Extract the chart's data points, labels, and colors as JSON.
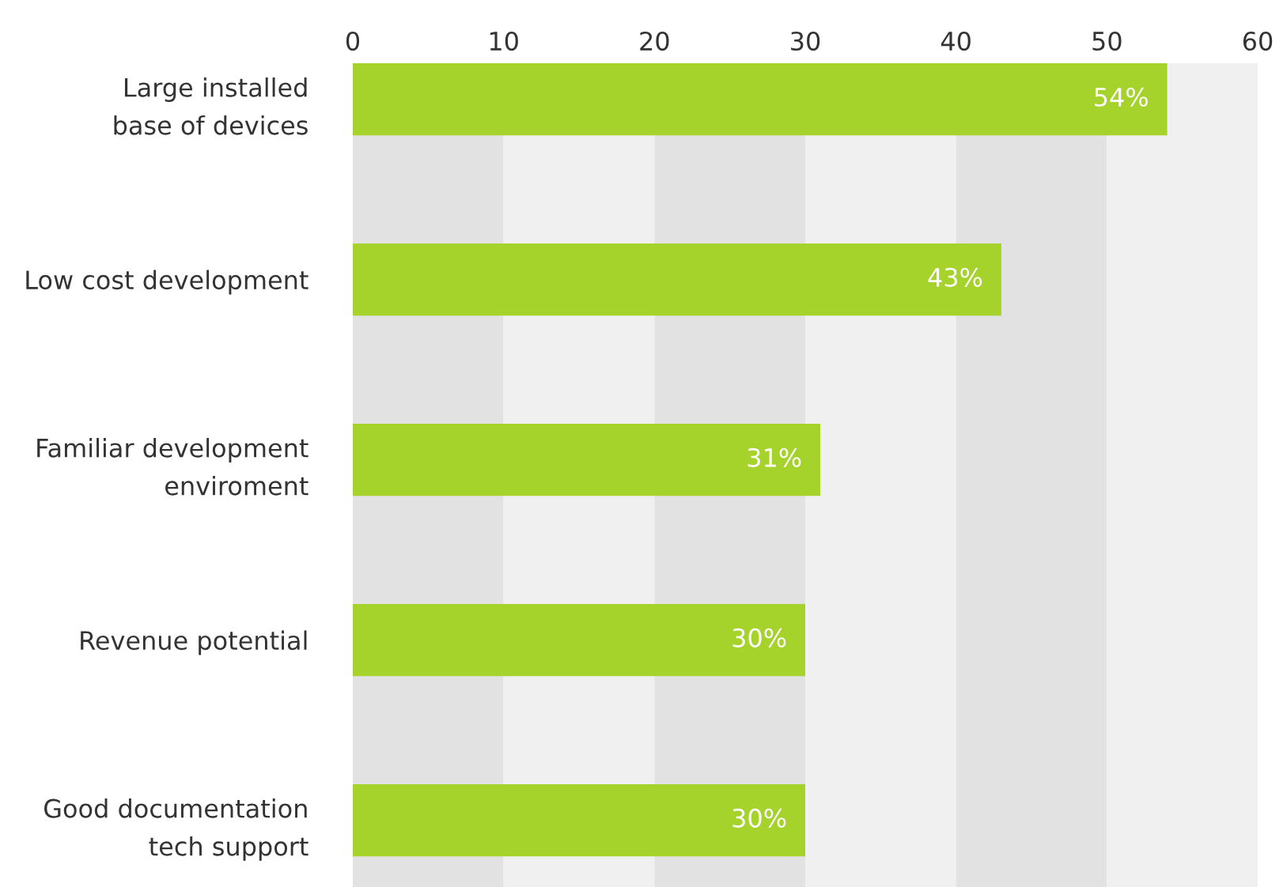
{
  "chart_data": {
    "type": "bar",
    "orientation": "horizontal",
    "categories": [
      "Large installed\nbase of devices",
      "Low cost development",
      "Familiar development\nenviroment",
      "Revenue potential",
      "Good documentation\ntech support"
    ],
    "values": [
      54,
      43,
      31,
      30,
      30
    ],
    "value_labels": [
      "54%",
      "43%",
      "31%",
      "30%",
      "30%"
    ],
    "color": "#a5d22b",
    "xlim": [
      0,
      60
    ],
    "xticks": [
      0,
      10,
      20,
      30,
      40,
      50,
      60
    ],
    "bands": [
      {
        "axis": "x",
        "from": 0,
        "to": 10,
        "color": "#e2e2e2"
      },
      {
        "axis": "x",
        "from": 10,
        "to": 20,
        "color": "#f0f0f0"
      },
      {
        "axis": "x",
        "from": 20,
        "to": 30,
        "color": "#e2e2e2"
      },
      {
        "axis": "x",
        "from": 30,
        "to": 40,
        "color": "#f0f0f0"
      },
      {
        "axis": "x",
        "from": 40,
        "to": 50,
        "color": "#e2e2e2"
      },
      {
        "axis": "x",
        "from": 50,
        "to": 60,
        "color": "#f0f0f0"
      }
    ],
    "grid": false
  }
}
